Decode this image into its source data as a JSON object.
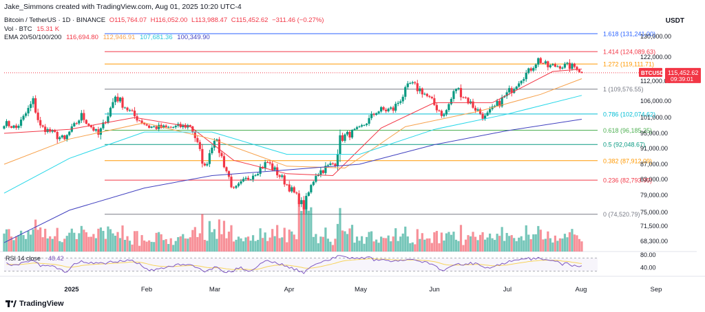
{
  "header": {
    "credit": "Jake_Simmons created with TradingView.com, Aug 01, 2025 10:20 UTC-4",
    "symbol_line": "Bitcoin / TetherUS · 1D · BINANCE",
    "ohlc": {
      "open": "O115,764.07",
      "high": "H116,052.00",
      "low": "L113,988.47",
      "close": "C115,452.62",
      "change": "−311.46 (−0.27%)"
    },
    "vol_label": "Vol · BTC",
    "vol_value": "15.31 K",
    "ema_label": "EMA 20/50/100/200",
    "ema_values": [
      "116,694.80",
      "112,946.91",
      "107,681.36",
      "100,349.90"
    ],
    "currency": "USDT"
  },
  "footer": {
    "brand": "TradingView"
  },
  "colors": {
    "up": "#089981",
    "down": "#f23645",
    "ema20": "#f23645",
    "ema50": "#f7a14b",
    "ema100": "#26d7e8",
    "ema200": "#3f3fbf",
    "rsi": "#7e57c2",
    "rsi_ma": "#f7d35c"
  },
  "chart_data": {
    "type": "candlestick",
    "symbol": "BTCUSDT",
    "last_price_label": "115,452.62",
    "countdown": "09:39:01",
    "y_ticks": [
      "130,000.00",
      "122,000.00",
      "112,000.00",
      "106,000.00",
      "101,000.00",
      "95,000.00",
      "91,000.00",
      "87,000.00",
      "83,000.00",
      "79,000.00",
      "75,000.00",
      "71,500.00",
      "68,300.00"
    ],
    "y_tick_values": [
      130000,
      122000,
      112000,
      106000,
      101000,
      95000,
      91000,
      87000,
      83000,
      79000,
      75000,
      71500,
      68300
    ],
    "x_labels": [
      {
        "label": "2025",
        "date": "2025-01-01"
      },
      {
        "label": "Feb",
        "date": "2025-02-01"
      },
      {
        "label": "Mar",
        "date": "2025-03-01"
      },
      {
        "label": "Apr",
        "date": "2025-04-01"
      },
      {
        "label": "May",
        "date": "2025-05-01"
      },
      {
        "label": "Jun",
        "date": "2025-06-01"
      },
      {
        "label": "Jul",
        "date": "2025-07-01"
      },
      {
        "label": "Aug",
        "date": "2025-08-01"
      },
      {
        "label": "Sep",
        "date": "2025-09-01"
      }
    ],
    "fib_levels": [
      {
        "ratio": "1.618",
        "price": 131241.0,
        "label": "1.618 (131,241.00)",
        "color": "#2962ff"
      },
      {
        "ratio": "1.414",
        "price": 124089.63,
        "label": "1.414 (124,089.63)",
        "color": "#f23645"
      },
      {
        "ratio": "1.272",
        "price": 119111.71,
        "label": "1.272 (119,111.71)",
        "color": "#ff9800"
      },
      {
        "ratio": "1",
        "price": 109576.55,
        "label": "1 (109,576.55)",
        "color": "#787b86"
      },
      {
        "ratio": "0.786",
        "price": 102074.62,
        "label": "0.786 (102,074.62)",
        "color": "#00bcd4"
      },
      {
        "ratio": "0.618",
        "price": 96185.25,
        "label": "0.618 (96,185.25)",
        "color": "#4caf50"
      },
      {
        "ratio": "0.5",
        "price": 92048.67,
        "label": "0.5 (92,048.67)",
        "color": "#089981"
      },
      {
        "ratio": "0.382",
        "price": 87912.09,
        "label": "0.382 (87,912.09)",
        "color": "#ff9800"
      },
      {
        "ratio": "0.236",
        "price": 82793.95,
        "label": "0.236 (82,793.95)",
        "color": "#f23645"
      },
      {
        "ratio": "0",
        "price": 74520.79,
        "label": "0 (74,520.79)",
        "color": "#787b86"
      }
    ],
    "ohlc_keypoints": [
      [
        "2024-12-05",
        99000
      ],
      [
        "2024-12-10",
        97000
      ],
      [
        "2024-12-17",
        106000
      ],
      [
        "2024-12-20",
        97500
      ],
      [
        "2024-12-30",
        93000
      ],
      [
        "2025-01-06",
        101500
      ],
      [
        "2025-01-13",
        94500
      ],
      [
        "2025-01-20",
        107500
      ],
      [
        "2025-01-27",
        102000
      ],
      [
        "2025-02-03",
        97500
      ],
      [
        "2025-02-10",
        97000
      ],
      [
        "2025-02-20",
        98000
      ],
      [
        "2025-02-26",
        86000
      ],
      [
        "2025-03-02",
        94000
      ],
      [
        "2025-03-10",
        80000
      ],
      [
        "2025-03-17",
        84000
      ],
      [
        "2025-03-24",
        87500
      ],
      [
        "2025-03-31",
        82500
      ],
      [
        "2025-04-08",
        76300
      ],
      [
        "2025-04-13",
        84500
      ],
      [
        "2025-04-21",
        87500
      ],
      [
        "2025-04-23",
        93500
      ],
      [
        "2025-05-01",
        96500
      ],
      [
        "2025-05-08",
        103000
      ],
      [
        "2025-05-15",
        103500
      ],
      [
        "2025-05-22",
        111000
      ],
      [
        "2025-05-27",
        109000
      ],
      [
        "2025-06-05",
        101500
      ],
      [
        "2025-06-10",
        110000
      ],
      [
        "2025-06-17",
        104500
      ],
      [
        "2025-06-22",
        100900
      ],
      [
        "2025-07-02",
        108800
      ],
      [
        "2025-07-10",
        116000
      ],
      [
        "2025-07-14",
        121000
      ],
      [
        "2025-07-18",
        118000
      ],
      [
        "2025-07-23",
        118500
      ],
      [
        "2025-07-30",
        117800
      ],
      [
        "2025-08-01",
        115452.62
      ]
    ],
    "ema_labels": [
      "EMA 20",
      "EMA 50",
      "EMA 100",
      "EMA 200"
    ],
    "ema_keypoints": {
      "ema20": [
        [
          "2024-12-05",
          95000
        ],
        [
          "2025-01-01",
          96500
        ],
        [
          "2025-01-28",
          101000
        ],
        [
          "2025-02-20",
          97500
        ],
        [
          "2025-03-10",
          88000
        ],
        [
          "2025-04-01",
          84500
        ],
        [
          "2025-04-20",
          84000
        ],
        [
          "2025-05-10",
          97000
        ],
        [
          "2025-06-01",
          105500
        ],
        [
          "2025-06-25",
          105500
        ],
        [
          "2025-07-20",
          116000
        ],
        [
          "2025-08-01",
          117000
        ]
      ],
      "ema50": [
        [
          "2024-12-05",
          87000
        ],
        [
          "2025-01-01",
          93500
        ],
        [
          "2025-02-01",
          99000
        ],
        [
          "2025-03-01",
          93500
        ],
        [
          "2025-04-01",
          86500
        ],
        [
          "2025-04-25",
          86000
        ],
        [
          "2025-05-20",
          97500
        ],
        [
          "2025-06-20",
          103000
        ],
        [
          "2025-07-15",
          108000
        ],
        [
          "2025-08-01",
          113000
        ]
      ],
      "ema100": [
        [
          "2024-12-05",
          79500
        ],
        [
          "2025-01-01",
          88500
        ],
        [
          "2025-02-01",
          95500
        ],
        [
          "2025-03-01",
          95500
        ],
        [
          "2025-04-01",
          89500
        ],
        [
          "2025-05-01",
          89500
        ],
        [
          "2025-06-01",
          96500
        ],
        [
          "2025-07-01",
          102000
        ],
        [
          "2025-08-01",
          107700
        ]
      ],
      "ema200": [
        [
          "2024-12-05",
          68000
        ],
        [
          "2025-01-01",
          75500
        ],
        [
          "2025-02-01",
          80800
        ],
        [
          "2025-03-01",
          84000
        ],
        [
          "2025-04-01",
          85500
        ],
        [
          "2025-05-01",
          87000
        ],
        [
          "2025-06-01",
          92000
        ],
        [
          "2025-07-01",
          96000
        ],
        [
          "2025-08-01",
          100350
        ]
      ]
    },
    "volume": {
      "label": "Vol · BTC",
      "last": "15.31 K"
    },
    "rsi": {
      "label": "RSI 14 close",
      "value": "48.42",
      "y_ticks": [
        "80.00",
        "40.00"
      ],
      "y_tick_values": [
        80,
        40
      ],
      "upper": 70,
      "lower": 30
    }
  }
}
